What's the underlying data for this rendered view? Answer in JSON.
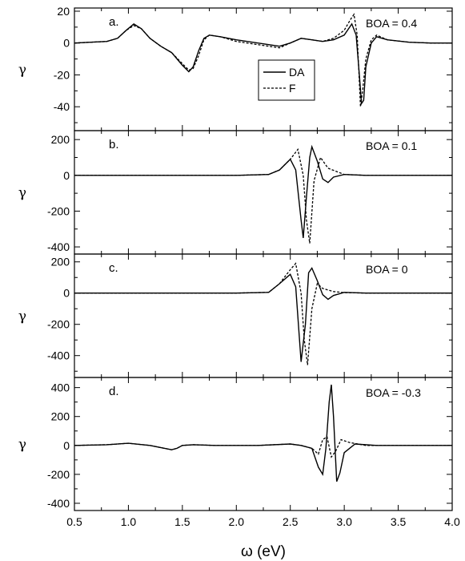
{
  "chart_data": [
    {
      "type": "line",
      "panel_label": "a.",
      "annotation": "BOA = 0.4",
      "ylabel": "γ",
      "xlim": [
        0.5,
        4.0
      ],
      "ylim": [
        -55,
        22
      ],
      "yticks": [
        20,
        0,
        -20,
        -40
      ],
      "legend": {
        "placement": "center",
        "entries": [
          "DA",
          "F"
        ]
      },
      "series": [
        {
          "name": "DA",
          "style": "solid",
          "x": [
            0.5,
            0.8,
            0.9,
            0.98,
            1.05,
            1.12,
            1.2,
            1.3,
            1.4,
            1.5,
            1.56,
            1.6,
            1.65,
            1.7,
            1.75,
            1.85,
            2.0,
            2.2,
            2.4,
            2.5,
            2.6,
            2.7,
            2.8,
            2.9,
            3.0,
            3.07,
            3.11,
            3.14,
            3.16,
            3.18,
            3.2,
            3.25,
            3.3,
            3.4,
            3.6,
            3.8,
            4.0
          ],
          "y": [
            0,
            1,
            3,
            8,
            12,
            9,
            3,
            -2,
            -6,
            -14,
            -18,
            -15,
            -5,
            3,
            5,
            4,
            2,
            0,
            -2,
            0,
            3,
            2,
            1,
            2,
            5,
            12,
            5,
            -20,
            -38,
            -36,
            -15,
            0,
            4,
            2,
            0.5,
            0,
            0
          ]
        },
        {
          "name": "F",
          "style": "dashed",
          "x": [
            0.5,
            0.8,
            0.9,
            0.98,
            1.05,
            1.12,
            1.2,
            1.3,
            1.4,
            1.5,
            1.56,
            1.6,
            1.65,
            1.7,
            1.75,
            1.85,
            2.0,
            2.2,
            2.4,
            2.5,
            2.6,
            2.7,
            2.8,
            2.9,
            3.0,
            3.06,
            3.09,
            3.12,
            3.15,
            3.17,
            3.2,
            3.25,
            3.3,
            3.4,
            3.6,
            3.8,
            4.0
          ],
          "y": [
            0,
            1,
            3,
            8,
            11,
            9,
            3,
            -2,
            -6,
            -13,
            -17,
            -16,
            -8,
            2,
            5,
            4,
            1,
            -1,
            -3,
            0,
            3,
            2,
            1,
            3,
            8,
            15,
            18,
            5,
            -40,
            -30,
            -10,
            2,
            5,
            2,
            0.5,
            0,
            0
          ]
        }
      ]
    },
    {
      "type": "line",
      "panel_label": "b.",
      "annotation": "BOA = 0.1",
      "ylabel": "γ",
      "xlim": [
        0.5,
        4.0
      ],
      "ylim": [
        -440,
        250
      ],
      "yticks": [
        200,
        0,
        -200,
        -400
      ],
      "series": [
        {
          "name": "DA",
          "style": "solid",
          "x": [
            0.5,
            2.0,
            2.3,
            2.4,
            2.5,
            2.55,
            2.6,
            2.62,
            2.65,
            2.68,
            2.7,
            2.75,
            2.8,
            2.85,
            2.9,
            3.0,
            3.2,
            4.0
          ],
          "y": [
            0,
            0,
            5,
            30,
            90,
            30,
            -250,
            -350,
            -120,
            100,
            160,
            80,
            -20,
            -40,
            -10,
            5,
            0,
            0
          ]
        },
        {
          "name": "F",
          "style": "dashed",
          "x": [
            0.5,
            2.0,
            2.3,
            2.4,
            2.5,
            2.57,
            2.62,
            2.65,
            2.68,
            2.72,
            2.78,
            2.85,
            3.0,
            3.2,
            4.0
          ],
          "y": [
            0,
            0,
            5,
            30,
            90,
            145,
            0,
            -250,
            -380,
            -30,
            100,
            40,
            5,
            0,
            0
          ]
        }
      ]
    },
    {
      "type": "line",
      "panel_label": "c.",
      "annotation": "BOA = 0",
      "ylabel": "γ",
      "xlim": [
        0.5,
        4.0
      ],
      "ylim": [
        -540,
        250
      ],
      "yticks": [
        200,
        0,
        -200,
        -400
      ],
      "series": [
        {
          "name": "DA",
          "style": "solid",
          "x": [
            0.5,
            2.0,
            2.3,
            2.4,
            2.5,
            2.55,
            2.6,
            2.64,
            2.67,
            2.7,
            2.75,
            2.8,
            2.85,
            2.9,
            3.0,
            3.2,
            4.0
          ],
          "y": [
            0,
            0,
            5,
            60,
            120,
            40,
            -440,
            -200,
            130,
            160,
            80,
            -10,
            -40,
            -15,
            5,
            0,
            0
          ]
        },
        {
          "name": "F",
          "style": "dashed",
          "x": [
            0.5,
            2.0,
            2.3,
            2.4,
            2.5,
            2.55,
            2.6,
            2.63,
            2.66,
            2.7,
            2.75,
            2.8,
            2.9,
            3.0,
            3.2,
            4.0
          ],
          "y": [
            0,
            0,
            5,
            60,
            150,
            190,
            0,
            -300,
            -460,
            -100,
            60,
            30,
            10,
            3,
            0,
            0
          ]
        }
      ]
    },
    {
      "type": "line",
      "panel_label": "d.",
      "annotation": "BOA = -0.3",
      "ylabel": "γ",
      "xlabel": "ω (eV)",
      "xlim": [
        0.5,
        4.0
      ],
      "xticks": [
        0.5,
        1.0,
        1.5,
        2.0,
        2.5,
        3.0,
        3.5,
        4.0
      ],
      "ylim": [
        -450,
        470
      ],
      "yticks": [
        400,
        200,
        0,
        -200,
        -400
      ],
      "series": [
        {
          "name": "DA",
          "style": "solid",
          "x": [
            0.5,
            0.8,
            1.0,
            1.2,
            1.4,
            1.45,
            1.5,
            1.6,
            1.8,
            2.2,
            2.5,
            2.6,
            2.7,
            2.76,
            2.8,
            2.83,
            2.86,
            2.88,
            2.9,
            2.93,
            2.96,
            3.0,
            3.1,
            3.3,
            4.0
          ],
          "y": [
            0,
            5,
            15,
            0,
            -30,
            -20,
            0,
            5,
            0,
            0,
            10,
            0,
            -20,
            -150,
            -200,
            -20,
            300,
            420,
            200,
            -250,
            -190,
            -50,
            10,
            0,
            0
          ]
        },
        {
          "name": "F",
          "style": "dashed",
          "x": [
            0.5,
            0.8,
            1.0,
            1.2,
            1.4,
            1.45,
            1.5,
            1.6,
            1.8,
            2.2,
            2.5,
            2.6,
            2.7,
            2.76,
            2.8,
            2.84,
            2.88,
            2.92,
            2.97,
            3.05,
            3.2,
            4.0
          ],
          "y": [
            0,
            5,
            15,
            0,
            -30,
            -20,
            0,
            5,
            0,
            0,
            10,
            0,
            -20,
            -60,
            40,
            60,
            -80,
            -40,
            40,
            20,
            0,
            0
          ]
        }
      ]
    }
  ]
}
